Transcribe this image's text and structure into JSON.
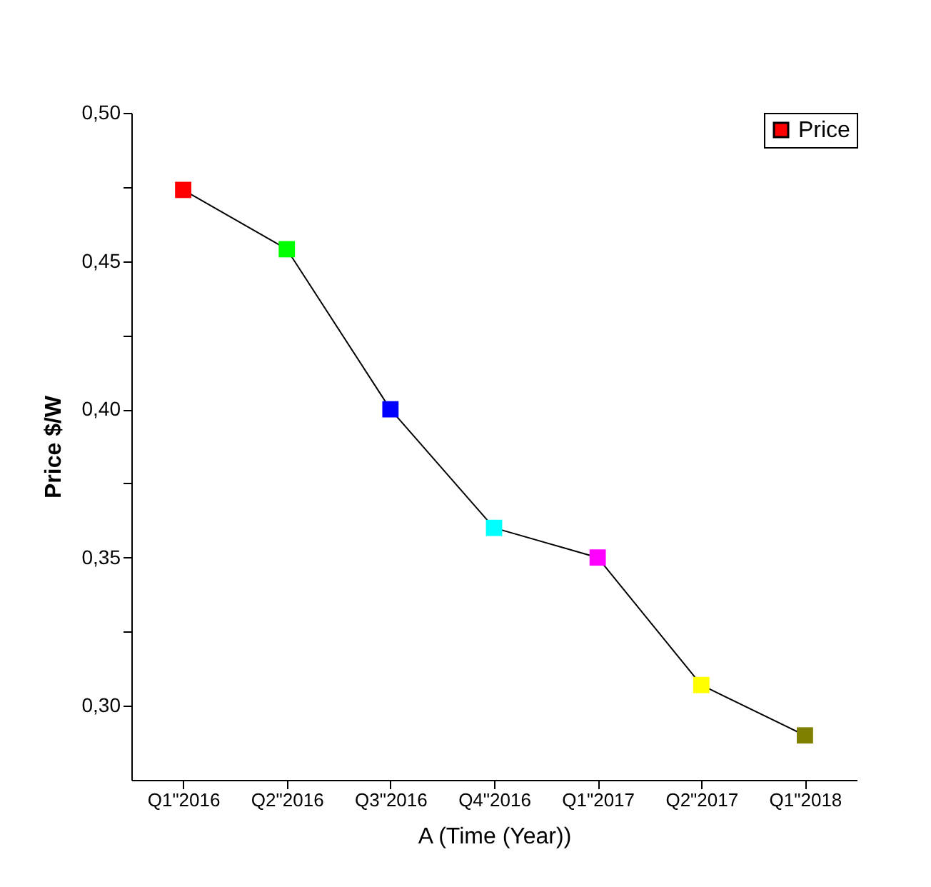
{
  "chart_data": {
    "type": "line",
    "xlabel": "A (Time (Year))",
    "ylabel": "Price $/W",
    "categories": [
      "Q1\"2016",
      "Q2\"2016",
      "Q3\"2016",
      "Q4\"2016",
      "Q1\"2017",
      "Q2\"2017",
      "Q1\"2018"
    ],
    "series": [
      {
        "name": "Price",
        "color": "#000000",
        "colors": [
          "#ff0000",
          "#00ff00",
          "#0000ff",
          "#00ffff",
          "#ff00ff",
          "#ffff00",
          "#808000"
        ],
        "values": [
          0.474,
          0.454,
          0.4,
          0.36,
          0.35,
          0.307,
          0.29
        ]
      }
    ],
    "ylim": [
      0.275,
      0.5
    ],
    "yticks": [
      {
        "value": 0.3,
        "label": "0,30"
      },
      {
        "value": 0.325,
        "label": null
      },
      {
        "value": 0.35,
        "label": "0,35"
      },
      {
        "value": 0.375,
        "label": null
      },
      {
        "value": 0.4,
        "label": "0,40"
      },
      {
        "value": 0.425,
        "label": null
      },
      {
        "value": 0.45,
        "label": "0,45"
      },
      {
        "value": 0.475,
        "label": null
      },
      {
        "value": 0.5,
        "label": "0,50"
      }
    ],
    "marker": "square",
    "grid": false,
    "legend": "top right"
  }
}
